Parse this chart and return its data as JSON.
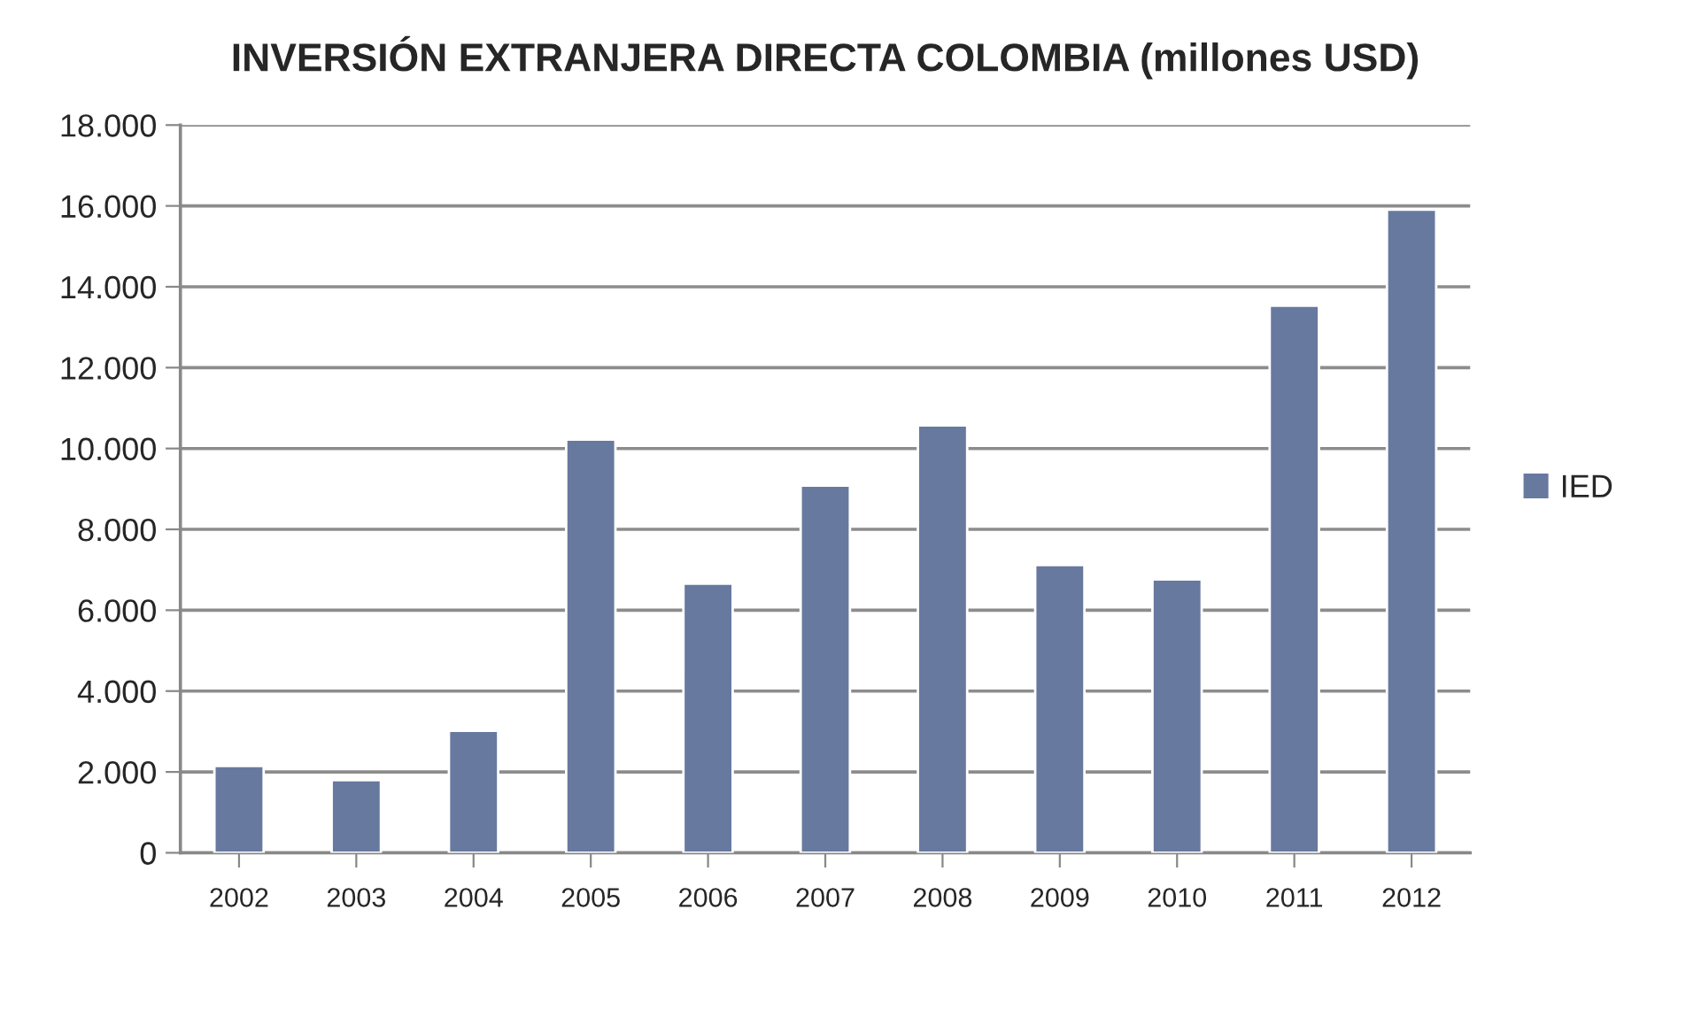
{
  "chart_data": {
    "type": "bar",
    "title": "INVERSIÓN EXTRANJERA DIRECTA COLOMBIA (millones USD)",
    "categories": [
      "2002",
      "2003",
      "2004",
      "2005",
      "2006",
      "2007",
      "2008",
      "2009",
      "2010",
      "2011",
      "2012"
    ],
    "series": [
      {
        "name": "IED",
        "color": "#67799f",
        "values": [
          2150,
          1800,
          3020,
          10220,
          6660,
          9080,
          10570,
          7120,
          6760,
          13530,
          15910
        ]
      }
    ],
    "ylim": [
      0,
      18000
    ],
    "yticks": [
      0,
      {
        "value": 2000,
        "label": "2.000"
      },
      {
        "value": 4000,
        "label": "4.000"
      },
      {
        "value": 6000,
        "label": "6.000"
      },
      {
        "value": 8000,
        "label": "8.000"
      },
      {
        "value": 10000,
        "label": "10.000"
      },
      {
        "value": 12000,
        "label": "12.000"
      },
      {
        "value": 14000,
        "label": "14.000"
      },
      {
        "value": 16000,
        "label": "16.000"
      },
      {
        "value": 18000,
        "label": "18.000"
      }
    ],
    "grid": "y",
    "legend": "right"
  }
}
